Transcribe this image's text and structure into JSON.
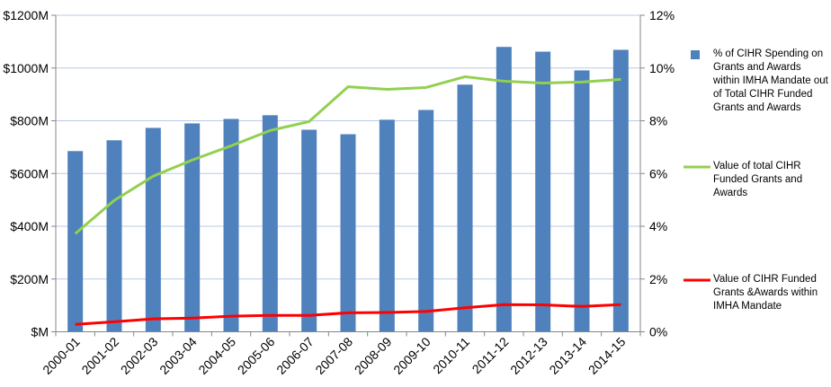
{
  "chart_data": {
    "type": "bar+line",
    "categories": [
      "2000-01",
      "2001-02",
      "2002-03",
      "2003-04",
      "2004-05",
      "2005-06",
      "2006-07",
      "2007-08",
      "2008-09",
      "2009-10",
      "2010-11",
      "2011-12",
      "2012-13",
      "2013-14",
      "2014-15"
    ],
    "left_axis": {
      "ticks": [
        "$M",
        "$200M",
        "$400M",
        "$600M",
        "$800M",
        "$1000M",
        "$1200M"
      ],
      "ylim": [
        0,
        1200
      ]
    },
    "right_axis": {
      "ticks": [
        "0%",
        "2%",
        "4%",
        "6%",
        "8%",
        "10%",
        "12%"
      ],
      "ylim": [
        0,
        12
      ]
    },
    "grid": true,
    "legend_position": "right",
    "series": [
      {
        "name": "% of CIHR Spending on Grants and Awards within IMHA Mandate out of Total CIHR Funded Grants and Awards",
        "type": "bar",
        "axis": "right",
        "color": "#4F81BD",
        "values": [
          6.85,
          7.26,
          7.73,
          7.9,
          8.07,
          8.21,
          7.66,
          7.49,
          8.04,
          8.41,
          9.37,
          10.8,
          10.62,
          9.91,
          10.69
        ]
      },
      {
        "name": "Value of total CIHR Funded Grants and Awards",
        "type": "line",
        "axis": "left",
        "color": "#92D050",
        "values": [
          372,
          498,
          590,
          651,
          705,
          763,
          797,
          929,
          919,
          926,
          967,
          950,
          943,
          947,
          957
        ]
      },
      {
        "name": "Value of CIHR Funded Grants &Awards within IMHA Mandate",
        "type": "line",
        "axis": "left",
        "color": "#FF0000",
        "values": [
          28,
          38,
          49,
          52,
          59,
          62,
          62,
          72,
          73,
          77,
          91,
          103,
          102,
          96,
          103
        ]
      }
    ]
  }
}
